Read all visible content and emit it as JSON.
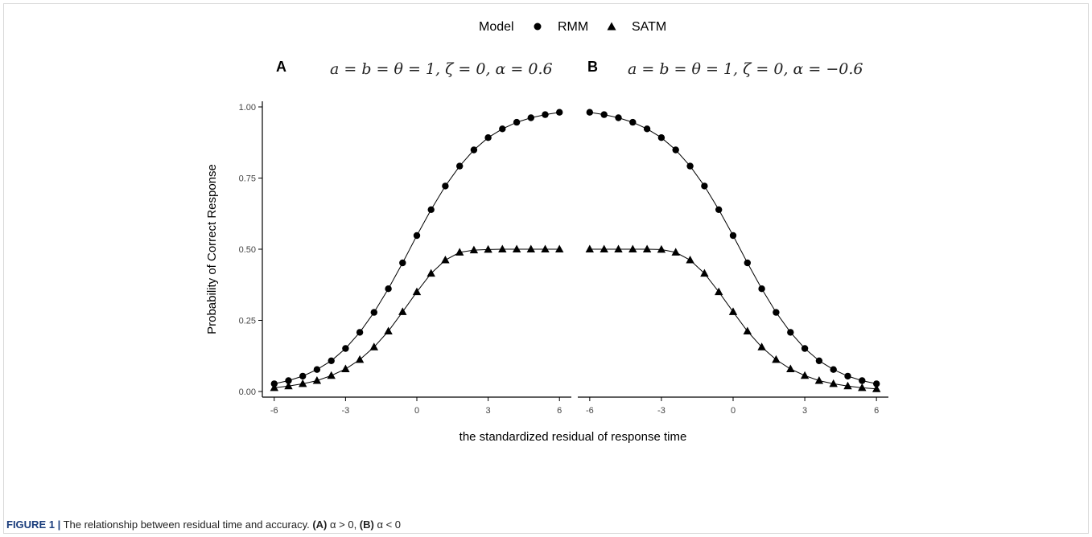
{
  "legend": {
    "title": "Model",
    "items": [
      {
        "label": "RMM",
        "marker": "circle"
      },
      {
        "label": "SATM",
        "marker": "triangle"
      }
    ]
  },
  "xlabel": "the standardized residual of response time",
  "ylabel": "Probability of Correct Response",
  "caption": {
    "lead": "FIGURE 1 |",
    "text": " The relationship between residual time and accuracy. ",
    "part_a": "(A)",
    "cond_a": " α > 0, ",
    "part_b": "(B)",
    "cond_b": " α < 0"
  },
  "chart_data": [
    {
      "type": "line",
      "panel": "A",
      "subtitle": "a = b = θ = 1, ζ = 0, α = 0.6",
      "x": [
        -6,
        -5.4,
        -4.8,
        -4.2,
        -3.6,
        -3,
        -2.4,
        -1.8,
        -1.2,
        -0.6,
        0,
        0.6,
        1.2,
        1.8,
        2.4,
        3,
        3.6,
        4.2,
        4.8,
        5.4,
        6
      ],
      "series": [
        {
          "name": "RMM",
          "marker": "circle",
          "values": [
            0.027,
            0.038,
            0.054,
            0.077,
            0.108,
            0.151,
            0.208,
            0.278,
            0.361,
            0.452,
            0.548,
            0.639,
            0.722,
            0.792,
            0.849,
            0.892,
            0.923,
            0.946,
            0.962,
            0.973,
            0.981
          ]
        },
        {
          "name": "SATM",
          "marker": "triangle",
          "values": [
            0.013,
            0.019,
            0.027,
            0.038,
            0.056,
            0.079,
            0.112,
            0.156,
            0.212,
            0.28,
            0.35,
            0.415,
            0.462,
            0.489,
            0.497,
            0.499,
            0.5,
            0.5,
            0.5,
            0.5,
            0.5
          ]
        }
      ],
      "xticks": [
        -6,
        -3,
        0,
        3,
        6
      ],
      "yticks": [
        0,
        0.25,
        0.5,
        0.75,
        1
      ],
      "ytick_labels": [
        "0.00",
        "0.25",
        "0.50",
        "0.75",
        "1.00"
      ],
      "xlim": [
        -6.5,
        6.5
      ],
      "ylim": [
        -0.03,
        1.02
      ],
      "grid": false
    },
    {
      "type": "line",
      "panel": "B",
      "subtitle": "a = b = θ = 1, ζ = 0, α = −0.6",
      "x": [
        -6,
        -5.4,
        -4.8,
        -4.2,
        -3.6,
        -3,
        -2.4,
        -1.8,
        -1.2,
        -0.6,
        0,
        0.6,
        1.2,
        1.8,
        2.4,
        3,
        3.6,
        4.2,
        4.8,
        5.4,
        6
      ],
      "series": [
        {
          "name": "RMM",
          "marker": "circle",
          "values": [
            0.981,
            0.973,
            0.962,
            0.946,
            0.923,
            0.892,
            0.849,
            0.792,
            0.722,
            0.639,
            0.548,
            0.452,
            0.361,
            0.278,
            0.208,
            0.151,
            0.108,
            0.077,
            0.054,
            0.038,
            0.027
          ]
        },
        {
          "name": "SATM",
          "marker": "triangle",
          "values": [
            0.5,
            0.5,
            0.5,
            0.5,
            0.5,
            0.499,
            0.489,
            0.462,
            0.415,
            0.35,
            0.28,
            0.212,
            0.156,
            0.112,
            0.079,
            0.056,
            0.038,
            0.027,
            0.019,
            0.013,
            0.009
          ]
        }
      ],
      "xticks": [
        -6,
        -3,
        0,
        3,
        6
      ],
      "xlim": [
        -6.5,
        6.5
      ],
      "ylim": [
        -0.03,
        1.02
      ],
      "grid": false
    }
  ]
}
